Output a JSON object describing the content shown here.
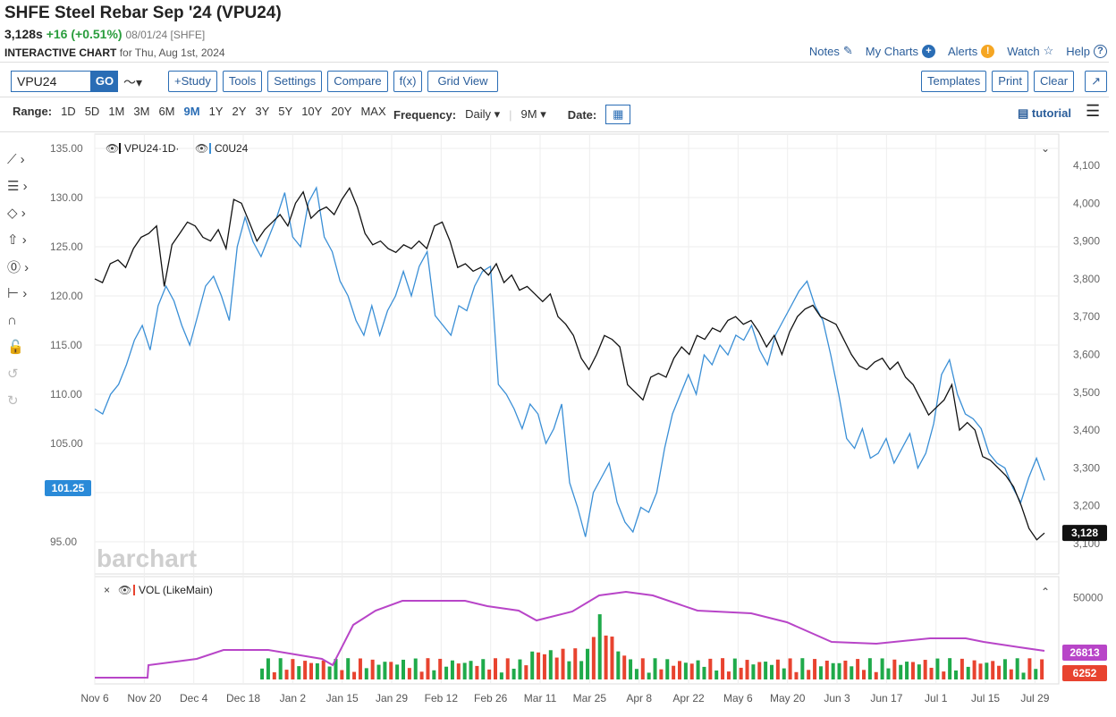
{
  "header": {
    "title": "SHFE Steel Rebar Sep '24 (VPU24)",
    "price": "3,128s",
    "change": "+16 (+0.51%)",
    "date_exch": "08/01/24 [SHFE]",
    "subtitle_bold": "INTERACTIVE CHART",
    "subtitle_rest": "for Thu, Aug 1st, 2024",
    "links": {
      "notes": "Notes",
      "mycharts": "My Charts",
      "alerts": "Alerts",
      "watch": "Watch",
      "help": "Help"
    }
  },
  "toolbar": {
    "symbol_value": "VPU24",
    "go": "GO",
    "study": "+Study",
    "tools": "Tools",
    "settings": "Settings",
    "compare": "Compare",
    "fx": "f(x)",
    "gridview": "Grid View",
    "templates": "Templates",
    "print": "Print",
    "clear": "Clear"
  },
  "rangebar": {
    "range_label": "Range:",
    "ranges": [
      "1D",
      "5D",
      "1M",
      "3M",
      "6M",
      "9M",
      "1Y",
      "2Y",
      "3Y",
      "5Y",
      "10Y",
      "20Y",
      "MAX"
    ],
    "active_range": "9M",
    "frequency_label": "Frequency:",
    "frequency": "Daily",
    "period": "9M",
    "date_label": "Date:",
    "tutorial": "tutorial"
  },
  "legend": {
    "main": "VPU24·1D·",
    "compare": "C0U24",
    "vol": "VOL (LikeMain)"
  },
  "watermark": "barchart",
  "colors": {
    "main": "#111111",
    "compare": "#3a8fd6",
    "vol_avg": "#b845c8",
    "up": "#1faa4a",
    "down": "#e8432f",
    "accent": "#2a6db5"
  },
  "chart_data": {
    "type": "line",
    "x_ticks": [
      "Nov 6",
      "Nov 20",
      "Dec 4",
      "Dec 18",
      "Jan 2",
      "Jan 15",
      "Jan 29",
      "Feb 12",
      "Feb 26",
      "Mar 11",
      "Mar 25",
      "Apr 8",
      "Apr 22",
      "May 6",
      "May 20",
      "Jun 3",
      "Jun 17",
      "Jul 1",
      "Jul 15",
      "Jul 29"
    ],
    "left_axis": {
      "ticks": [
        "135.00",
        "130.00",
        "125.00",
        "120.00",
        "115.00",
        "110.00",
        "105.00",
        "100.00",
        "95.00"
      ],
      "range": [
        95,
        135
      ]
    },
    "right_axis": {
      "ticks": [
        "4,100",
        "4,000",
        "3,900",
        "3,800",
        "3,700",
        "3,600",
        "3,500",
        "3,400",
        "3,300",
        "3,200",
        "3,100"
      ],
      "range": [
        3100,
        4100
      ]
    },
    "last_main_label": "3,128",
    "last_compare_label": "101.25",
    "series": [
      {
        "name": "VPU24",
        "axis": "right",
        "values": [
          3800,
          3790,
          3840,
          3850,
          3830,
          3880,
          3910,
          3920,
          3940,
          3780,
          3890,
          3920,
          3950,
          3940,
          3910,
          3900,
          3930,
          3880,
          4010,
          4000,
          3950,
          3900,
          3930,
          3950,
          3970,
          3940,
          4000,
          4030,
          3960,
          3980,
          3990,
          3970,
          4010,
          4040,
          3990,
          3920,
          3890,
          3900,
          3880,
          3870,
          3890,
          3880,
          3900,
          3880,
          3940,
          3950,
          3900,
          3830,
          3840,
          3820,
          3830,
          3810,
          3840,
          3790,
          3810,
          3770,
          3780,
          3760,
          3740,
          3760,
          3700,
          3680,
          3650,
          3590,
          3560,
          3600,
          3650,
          3640,
          3620,
          3520,
          3500,
          3480,
          3540,
          3550,
          3540,
          3590,
          3620,
          3600,
          3650,
          3640,
          3670,
          3660,
          3690,
          3700,
          3680,
          3690,
          3660,
          3620,
          3650,
          3600,
          3660,
          3700,
          3720,
          3730,
          3700,
          3690,
          3680,
          3640,
          3600,
          3570,
          3560,
          3580,
          3590,
          3560,
          3580,
          3540,
          3520,
          3480,
          3440,
          3460,
          3480,
          3520,
          3400,
          3420,
          3400,
          3330,
          3320,
          3300,
          3280,
          3250,
          3200,
          3140,
          3110,
          3128
        ]
      },
      {
        "name": "C0U24",
        "axis": "left",
        "values": [
          108.5,
          108.0,
          110.0,
          111.0,
          113.0,
          115.5,
          117.0,
          114.5,
          119.0,
          121.0,
          119.5,
          117.0,
          115.0,
          118.0,
          121.0,
          122.0,
          120.0,
          117.5,
          125.0,
          128.0,
          125.5,
          124.0,
          126.0,
          128.0,
          130.5,
          126.0,
          125.0,
          129.5,
          131.0,
          126.0,
          124.5,
          121.5,
          120.0,
          117.5,
          116.0,
          119.0,
          116.0,
          118.5,
          120.0,
          122.5,
          120.0,
          123.0,
          124.5,
          118.0,
          117.0,
          116.0,
          119.0,
          118.5,
          121.0,
          122.5,
          123.0,
          111.0,
          110.0,
          108.5,
          106.5,
          109.0,
          108.0,
          105.0,
          106.5,
          109.0,
          101.0,
          98.5,
          95.5,
          100.0,
          101.5,
          103.0,
          99.0,
          97.0,
          96.0,
          98.5,
          98.0,
          100.0,
          104.5,
          108.0,
          110.0,
          112.0,
          110.0,
          114.0,
          113.0,
          115.0,
          114.0,
          116.0,
          115.5,
          117.0,
          114.5,
          113.0,
          116.0,
          117.5,
          119.0,
          120.5,
          121.5,
          119.0,
          117.5,
          114.0,
          110.0,
          105.5,
          104.5,
          106.5,
          103.5,
          104.0,
          105.5,
          103.0,
          104.5,
          106.0,
          102.5,
          104.0,
          107.0,
          112.0,
          113.5,
          110.0,
          108.0,
          107.5,
          106.5,
          104.0,
          103.0,
          102.5,
          100.5,
          99.0,
          101.5,
          103.5,
          101.25
        ]
      }
    ],
    "volume": {
      "axis_ticks": [
        "50000"
      ],
      "last_avg_label": "26813",
      "last_vol_label": "6252"
    }
  }
}
